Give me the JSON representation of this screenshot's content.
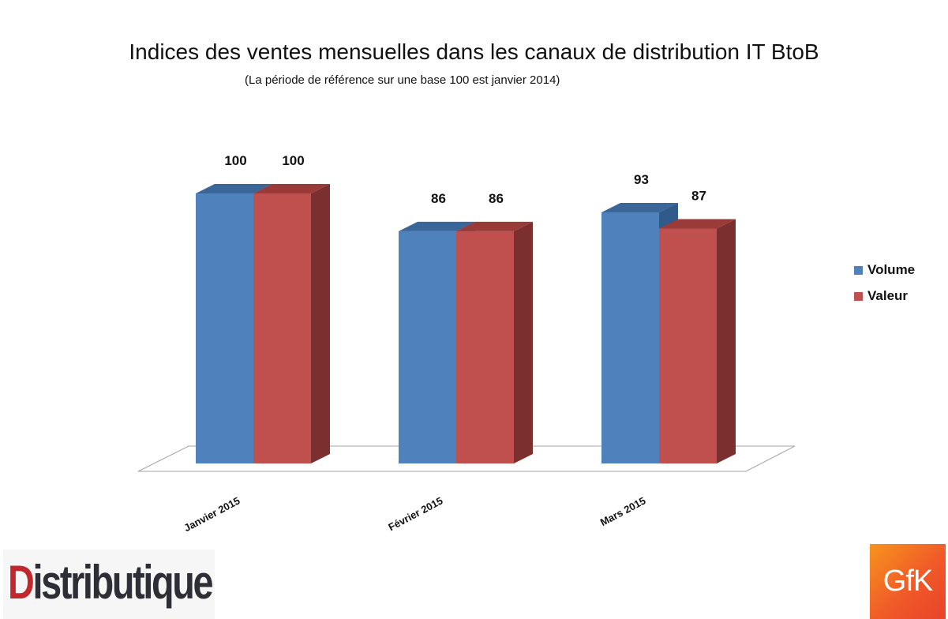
{
  "chart_data": {
    "type": "bar",
    "title": "Indices des ventes mensuelles dans les canaux de distribution IT BtoB",
    "subtitle": "(La période de référence sur une base 100 est janvier 2014)",
    "categories": [
      "Janvier 2015",
      "Février 2015",
      "Mars 2015"
    ],
    "series": [
      {
        "name": "Volume",
        "values": [
          100,
          86,
          93
        ],
        "color": "#4f81bd",
        "side_color": "#2f5a8a",
        "top_color": "#3a6699"
      },
      {
        "name": "Valeur",
        "values": [
          100,
          86,
          87
        ],
        "color": "#c0504d",
        "side_color": "#7b2f2e",
        "top_color": "#9a3b39"
      }
    ],
    "legend_position": "right",
    "grid": false,
    "three_d": true
  },
  "logos": {
    "distributique_first": "D",
    "distributique_rest": "istributique",
    "gfk": "GfK"
  }
}
